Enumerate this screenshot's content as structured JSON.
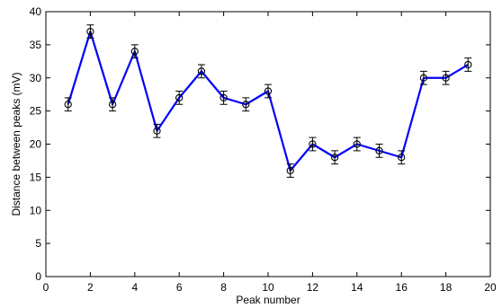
{
  "chart_data": {
    "type": "line",
    "title": "",
    "xlabel": "Peak number",
    "ylabel": "Distance between peaks (mV)",
    "xlim": [
      0,
      20
    ],
    "ylim": [
      0,
      40
    ],
    "x_ticks": [
      0,
      2,
      4,
      6,
      8,
      10,
      12,
      14,
      16,
      18,
      20
    ],
    "y_ticks": [
      0,
      5,
      10,
      15,
      20,
      25,
      30,
      35,
      40
    ],
    "grid": false,
    "legend": "none",
    "series": [
      {
        "color": "#0000ff",
        "marker": "circle",
        "error_bars": true,
        "x": [
          1,
          2,
          3,
          4,
          5,
          6,
          7,
          8,
          9,
          10,
          11,
          12,
          13,
          14,
          15,
          16,
          17,
          18,
          19
        ],
        "y": [
          26,
          37,
          26,
          34,
          22,
          27,
          31,
          27,
          26,
          28,
          16,
          20,
          18,
          20,
          19,
          18,
          30,
          30,
          32
        ],
        "error": [
          1,
          1,
          1,
          1,
          1,
          1,
          1,
          1,
          1,
          1,
          1,
          1,
          1,
          1,
          1,
          1,
          1,
          1,
          1
        ]
      }
    ]
  }
}
